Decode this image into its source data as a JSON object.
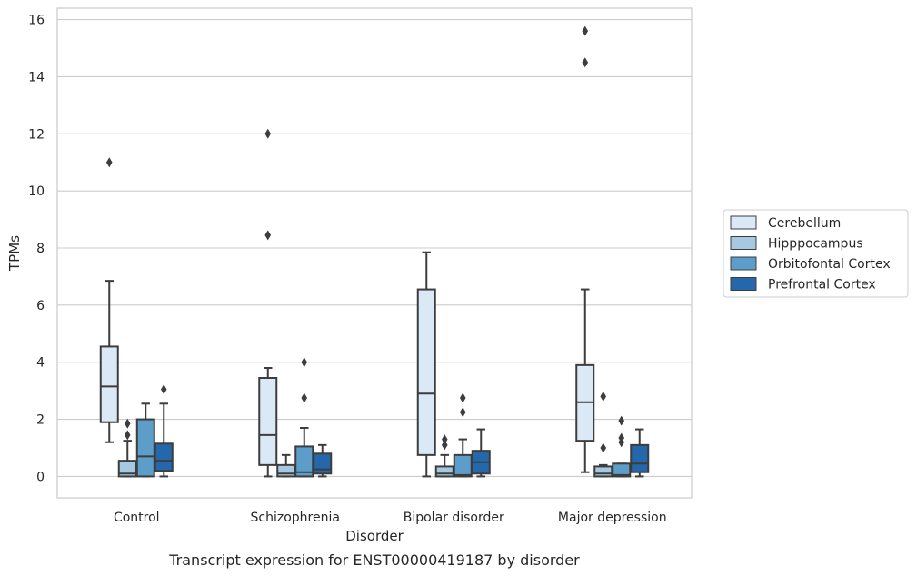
{
  "chart_data": {
    "type": "box",
    "caption": "Transcript expression for ENST00000419187 by disorder",
    "xlabel": "Disorder",
    "ylabel": "TPMs",
    "ylim": [
      -0.75,
      16.4
    ],
    "yticks": [
      0,
      2,
      4,
      6,
      8,
      10,
      12,
      14,
      16
    ],
    "grid": true,
    "legend_position": "right",
    "categories": [
      "Control",
      "Schizophrenia",
      "Bipolar disorder",
      "Major depression"
    ],
    "series": [
      {
        "name": "Cerebellum",
        "color": "#dbe8f5",
        "boxes": [
          {
            "whislo": 1.2,
            "q1": 1.9,
            "med": 3.15,
            "q3": 4.55,
            "whishi": 6.85,
            "fliers": [
              11.0
            ]
          },
          {
            "whislo": 0.0,
            "q1": 0.4,
            "med": 1.45,
            "q3": 3.45,
            "whishi": 3.8,
            "fliers": [
              8.45,
              12.0
            ]
          },
          {
            "whislo": 0.0,
            "q1": 0.75,
            "med": 2.9,
            "q3": 6.55,
            "whishi": 7.85,
            "fliers": []
          },
          {
            "whislo": 0.15,
            "q1": 1.25,
            "med": 2.6,
            "q3": 3.9,
            "whishi": 6.55,
            "fliers": [
              14.5,
              15.6
            ]
          }
        ]
      },
      {
        "name": "Hipppocampus",
        "color": "#a6c8e0",
        "boxes": [
          {
            "whislo": 0.0,
            "q1": 0.0,
            "med": 0.1,
            "q3": 0.55,
            "whishi": 1.25,
            "fliers": [
              1.45,
              1.85
            ]
          },
          {
            "whislo": 0.0,
            "q1": 0.0,
            "med": 0.1,
            "q3": 0.4,
            "whishi": 0.75,
            "fliers": []
          },
          {
            "whislo": 0.0,
            "q1": 0.0,
            "med": 0.1,
            "q3": 0.35,
            "whishi": 0.75,
            "fliers": [
              1.1,
              1.3
            ]
          },
          {
            "whislo": 0.0,
            "q1": 0.0,
            "med": 0.1,
            "q3": 0.35,
            "whishi": 0.4,
            "fliers": [
              1.0,
              2.8
            ]
          }
        ]
      },
      {
        "name": "Orbitofontal Cortex",
        "color": "#5c9ec9",
        "boxes": [
          {
            "whislo": 0.0,
            "q1": 0.0,
            "med": 0.7,
            "q3": 2.0,
            "whishi": 2.55,
            "fliers": []
          },
          {
            "whislo": 0.0,
            "q1": 0.0,
            "med": 0.15,
            "q3": 1.05,
            "whishi": 1.7,
            "fliers": [
              2.75,
              4.0
            ]
          },
          {
            "whislo": 0.0,
            "q1": 0.0,
            "med": 0.05,
            "q3": 0.75,
            "whishi": 1.3,
            "fliers": [
              2.25,
              2.75
            ]
          },
          {
            "whislo": 0.0,
            "q1": 0.0,
            "med": 0.05,
            "q3": 0.45,
            "whishi": 0.45,
            "fliers": [
              1.2,
              1.35,
              1.95
            ]
          }
        ]
      },
      {
        "name": "Prefrontal Cortex",
        "color": "#2468ab",
        "boxes": [
          {
            "whislo": 0.0,
            "q1": 0.2,
            "med": 0.55,
            "q3": 1.15,
            "whishi": 2.55,
            "fliers": [
              3.05
            ]
          },
          {
            "whislo": 0.0,
            "q1": 0.1,
            "med": 0.25,
            "q3": 0.8,
            "whishi": 1.1,
            "fliers": []
          },
          {
            "whislo": 0.0,
            "q1": 0.1,
            "med": 0.5,
            "q3": 0.9,
            "whishi": 1.65,
            "fliers": []
          },
          {
            "whislo": 0.0,
            "q1": 0.15,
            "med": 0.45,
            "q3": 1.1,
            "whishi": 1.65,
            "fliers": []
          }
        ]
      }
    ]
  }
}
